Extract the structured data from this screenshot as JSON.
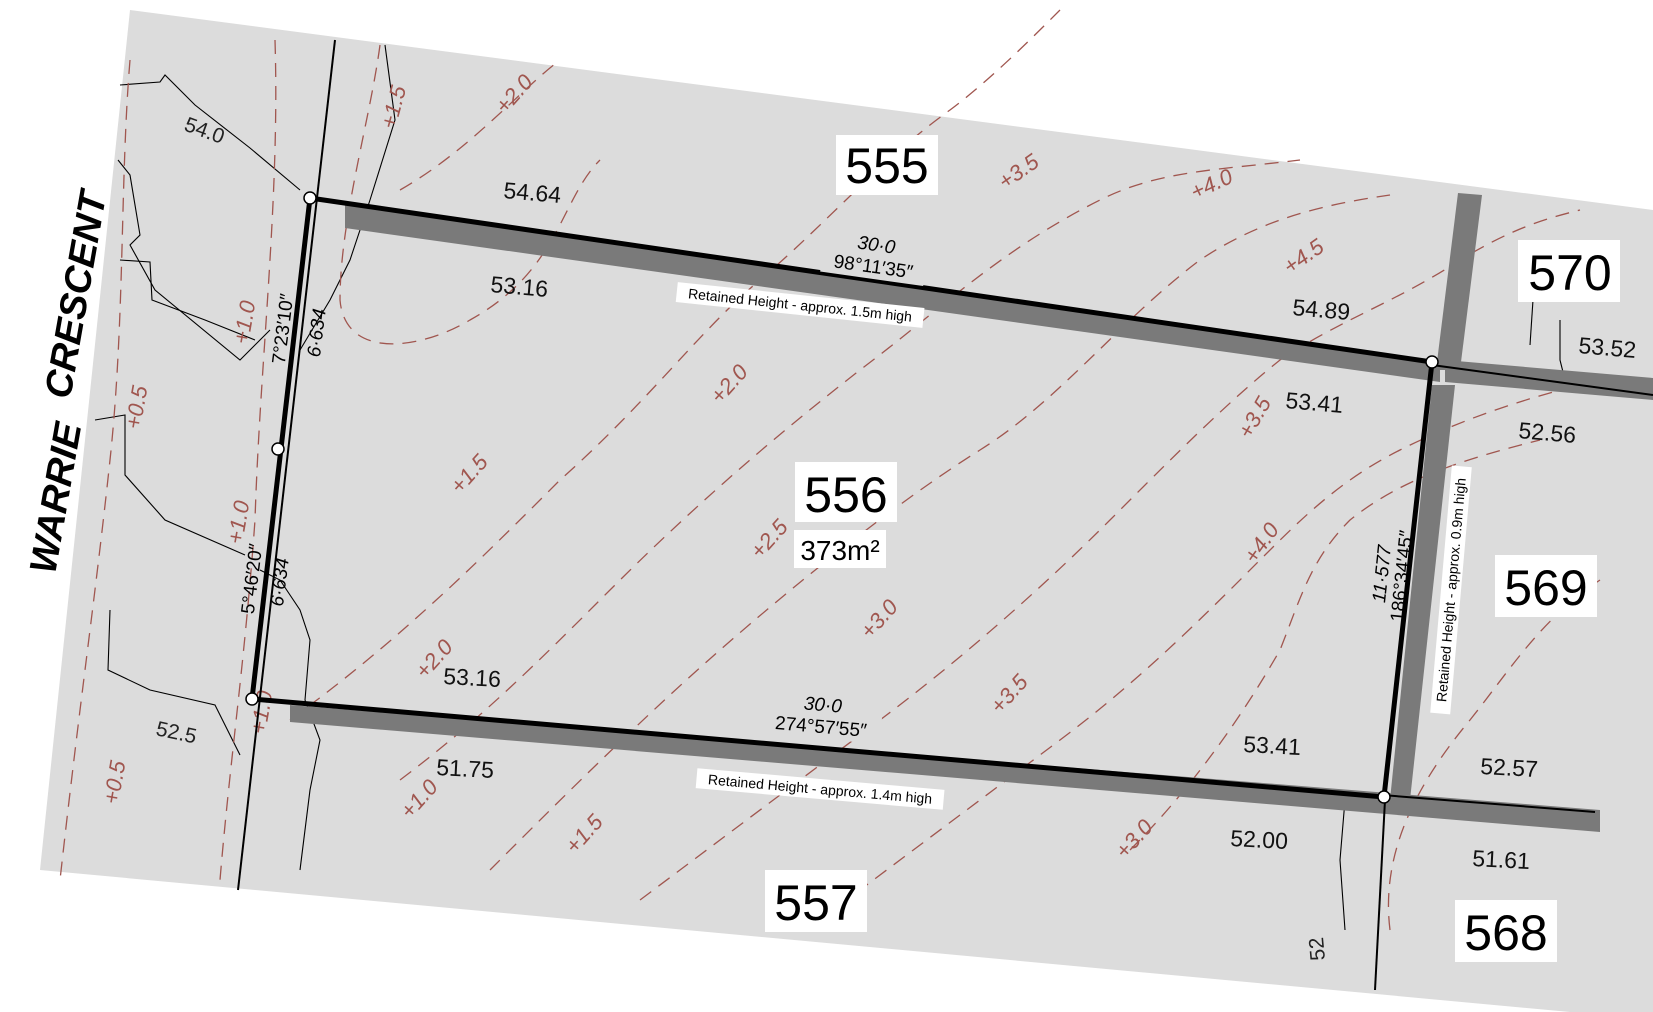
{
  "street": {
    "word1": "WARRIE",
    "word2": "CRESCENT"
  },
  "subject_lot": {
    "number": "556",
    "area": "373m²"
  },
  "neighbour_lots": {
    "north": "555",
    "south": "557",
    "east_upper": "570",
    "east_middle": "569",
    "east_lower": "568"
  },
  "boundary_dimensions": {
    "north_length": "30·0",
    "north_bearing": "98°11′35″",
    "south_length": "30·0",
    "south_bearing": "274°57′55″",
    "east_length": "11·577",
    "east_bearing": "186°34′45″",
    "west_upper_bearing": "7°23′10″",
    "west_upper_length": "6·634",
    "west_lower_bearing": "5°46′20″",
    "west_lower_length": "6·634"
  },
  "retaining_walls": {
    "north": "Retained Height - approx. 1.5m high",
    "south": "Retained Height - approx. 1.4m high",
    "east": "Retained Height - approx. 0.9m high"
  },
  "spot_levels": {
    "nw_upper": "54.64",
    "nw_lower": "53.16",
    "ne_upper": "54.89",
    "ne_lower": "53.41",
    "sw_upper": "53.16",
    "sw_lower": "51.75",
    "se_upper": "53.41",
    "se_lower": "52.00",
    "e_lot570": "53.52",
    "e_lot569_upper": "52.56",
    "e_lot569_lower": "52.57",
    "e_lot568": "51.61"
  },
  "existing_contours": {
    "c540": "54.0",
    "c525": "52.5",
    "c52": "52"
  },
  "design_contours": {
    "c05": "+0.5",
    "c10": "+1.0",
    "c15": "+1.5",
    "c20": "+2.0",
    "c25": "+2.5",
    "c30": "+3.0",
    "c35": "+3.5",
    "c40": "+4.0",
    "c45": "+4.5"
  },
  "colors": {
    "lot_fill": "#dcdcdc",
    "contour": "#a0564f",
    "wall": "#7a7a7a",
    "boundary": "#000000"
  }
}
